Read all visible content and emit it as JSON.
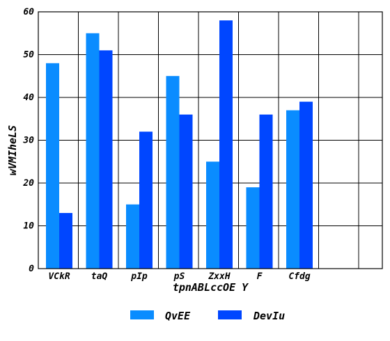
{
  "chart_data": {
    "type": "bar",
    "categories": [
      "VCkR",
      "taQ",
      "pIp",
      "pS",
      "ZxxH",
      "F",
      "Cfdg"
    ],
    "series": [
      {
        "name": "QvEE",
        "values": [
          48,
          55,
          15,
          45,
          25,
          19,
          37
        ],
        "color": "#0a8cff"
      },
      {
        "name": "DevIu",
        "values": [
          13,
          51,
          32,
          36,
          58,
          36,
          39
        ],
        "color": "#0046ff"
      }
    ],
    "xlabel": "tpnABLccOE Y",
    "ylabel": "wVMIheLS",
    "ylim": [
      0,
      60
    ],
    "yticks": [
      0,
      10,
      20,
      30,
      40,
      50,
      60
    ],
    "grid": true,
    "legend_position": "bottom-center"
  }
}
